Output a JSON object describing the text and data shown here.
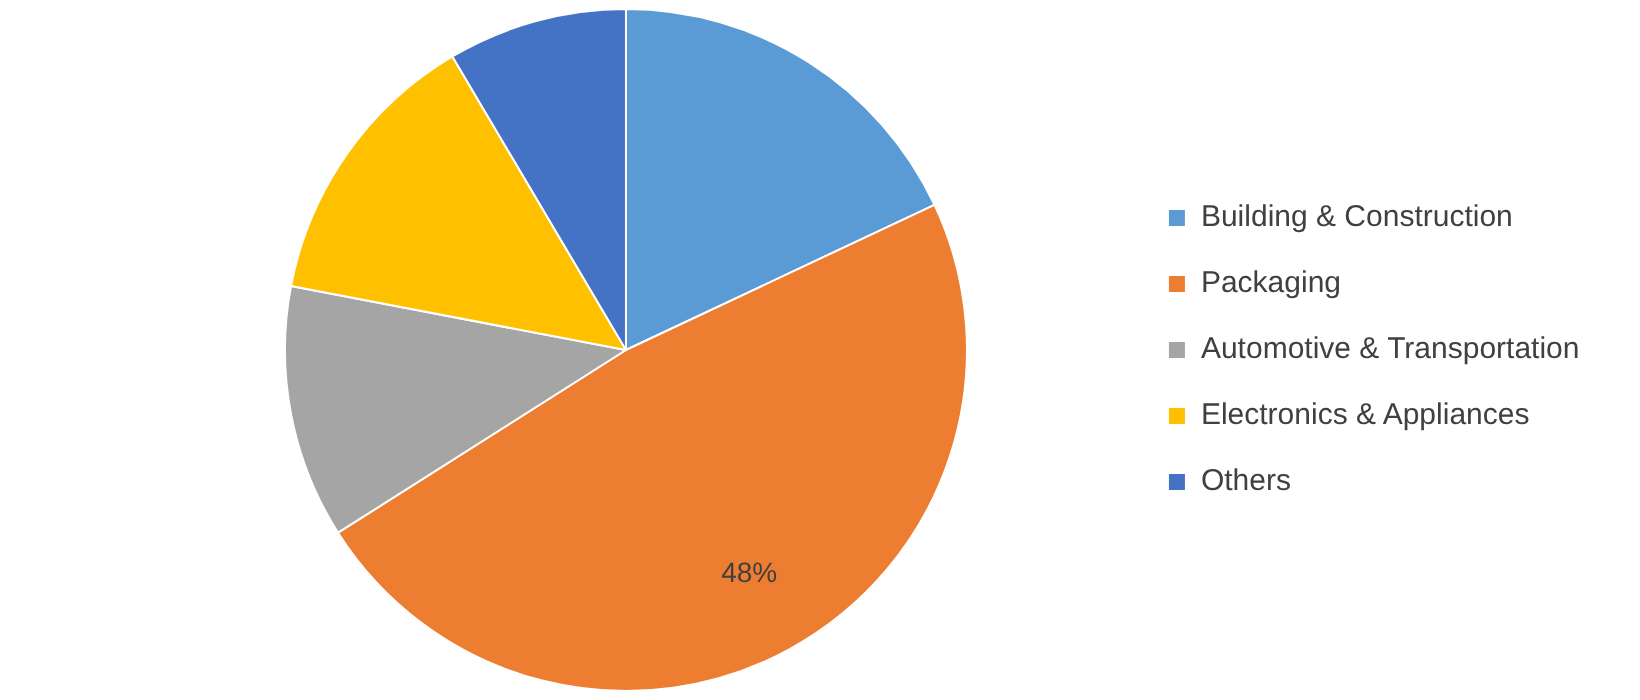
{
  "chart_data": {
    "type": "pie",
    "categories": [
      "Building & Construction",
      "Packaging",
      "Automotive & Transportation",
      "Electronics & Appliances",
      "Others"
    ],
    "values": [
      18,
      48,
      12,
      13.5,
      8.5
    ],
    "colors": [
      "#5b9bd5",
      "#ed7d31",
      "#a5a5a5",
      "#ffc000",
      "#4472c4"
    ],
    "value_labels": [
      null,
      "48%",
      null,
      null,
      null
    ],
    "legend": "right"
  }
}
